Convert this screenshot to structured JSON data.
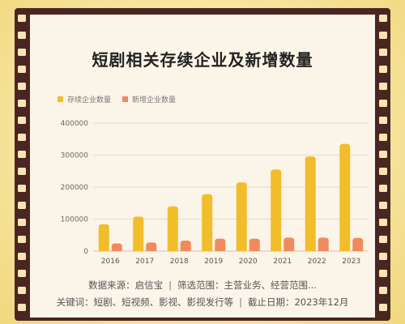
{
  "chart_data": {
    "type": "bar",
    "title": "短剧相关存续企业及新增数量",
    "categories": [
      "2016",
      "2017",
      "2018",
      "2019",
      "2020",
      "2021",
      "2022",
      "2023"
    ],
    "series": [
      {
        "name": "存续企业数量",
        "color": "#f2bd2a",
        "values": [
          84000,
          108000,
          140000,
          178000,
          215000,
          255000,
          296000,
          335000
        ]
      },
      {
        "name": "新增企业数量",
        "color": "#f08a5d",
        "values": [
          24000,
          27000,
          33000,
          39000,
          39000,
          42000,
          42000,
          41000
        ]
      }
    ],
    "yticks": [
      "0",
      "100000",
      "200000",
      "300000",
      "400000"
    ],
    "ylim": [
      0,
      400000
    ],
    "grid": true,
    "legend_position": "top-left"
  },
  "footer": {
    "source_label": "数据来源：启信宝",
    "separator": "|",
    "filter_label": "筛选范围：主营业务、经营范围...",
    "keywords_label": "关键词：短剧、短视频、影视、影视发行等",
    "deadline_label": "截止日期：2023年12月"
  },
  "colors": {
    "film": "#4a2622",
    "panel": "#fbf4e8",
    "background": "#f7e6a2"
  }
}
